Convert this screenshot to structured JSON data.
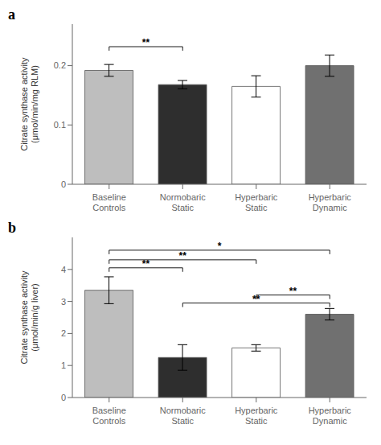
{
  "chart_data": [
    {
      "type": "bar",
      "title": "a",
      "categories": [
        "Baseline\nControls",
        "Normobaric\nStatic",
        "Hyperbaric\nStatic",
        "Hyperbaric\nDynamic"
      ],
      "values": [
        0.192,
        0.168,
        0.165,
        0.2
      ],
      "errors": [
        0.01,
        0.007,
        0.018,
        0.018
      ],
      "colors": [
        "#bebebe",
        "#2e2e2e",
        "#ffffff",
        "#707070"
      ],
      "y_label": "Citrate synthase activity\n(μmol/min/mg RLM)",
      "ylim": [
        0,
        0.27
      ],
      "yticks": [
        0,
        0.1,
        0.2
      ],
      "grid": false,
      "annotations": [
        {
          "from": "Baseline\nControls",
          "to": "Normobaric\nStatic",
          "y": 0.232,
          "label": "**"
        }
      ]
    },
    {
      "type": "bar",
      "title": "b",
      "categories": [
        "Baseline\nControls",
        "Normobaric\nStatic",
        "Hyperbaric\nStatic",
        "Hyperbaric\nDynamic"
      ],
      "values": [
        3.35,
        1.25,
        1.55,
        2.6
      ],
      "errors": [
        0.42,
        0.4,
        0.1,
        0.18
      ],
      "colors": [
        "#bebebe",
        "#2e2e2e",
        "#ffffff",
        "#707070"
      ],
      "y_label": "Citrate synthase activity\n(μmol/min/g liver)",
      "ylim": [
        0,
        5.0
      ],
      "yticks": [
        0,
        1,
        2,
        3,
        4
      ],
      "grid": false,
      "annotations": [
        {
          "from": "Baseline\nControls",
          "to": "Normobaric\nStatic",
          "y": 4.05,
          "label": "**"
        },
        {
          "from": "Baseline\nControls",
          "to": "Hyperbaric\nStatic",
          "y": 4.3,
          "label": "**"
        },
        {
          "from": "Baseline\nControls",
          "to": "Hyperbaric\nDynamic",
          "y": 4.6,
          "label": "*"
        },
        {
          "from": "Hyperbaric\nStatic",
          "to": "Hyperbaric\nDynamic",
          "y": 3.2,
          "label": "**"
        },
        {
          "from": "Normobaric\nStatic",
          "to": "Hyperbaric\nDynamic",
          "y": 2.95,
          "label": "**"
        }
      ]
    }
  ]
}
